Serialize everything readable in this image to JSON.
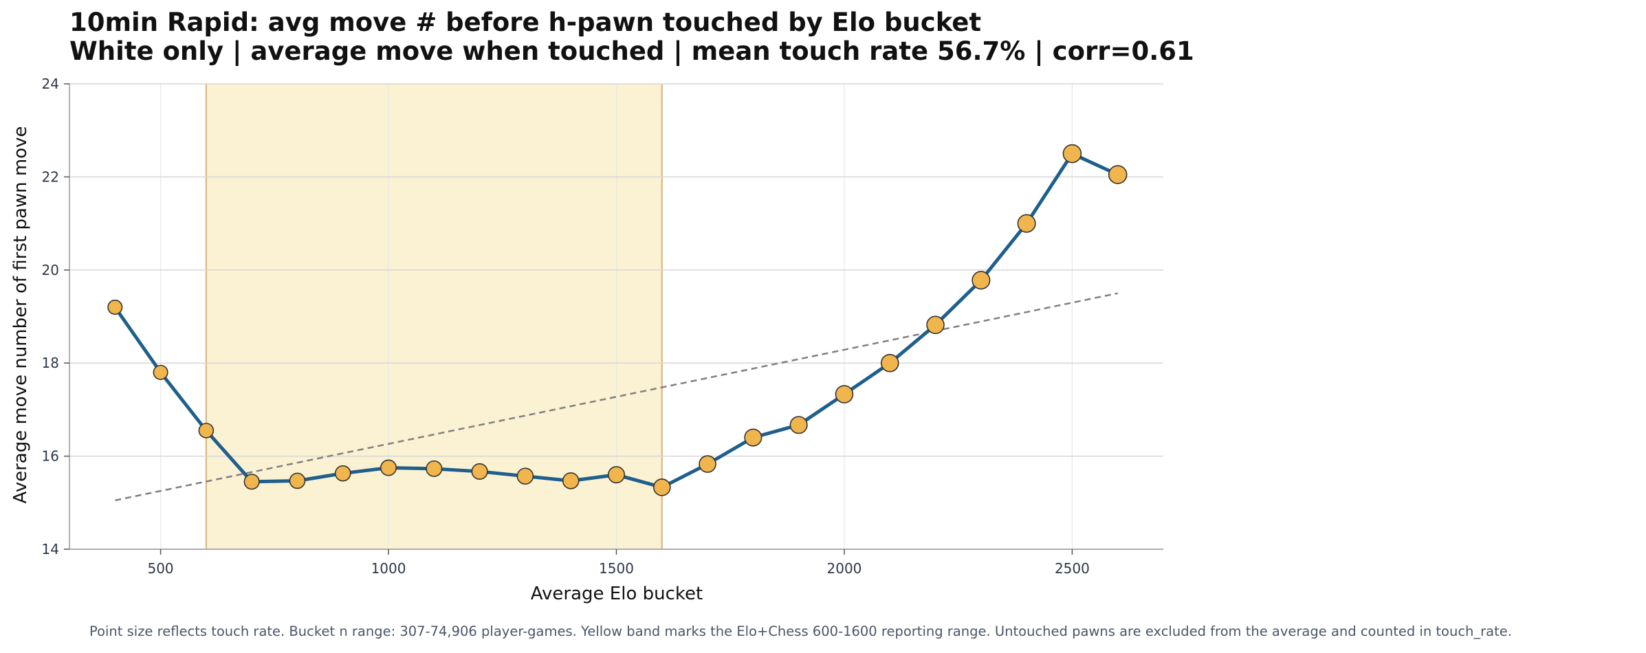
{
  "chart_data": {
    "type": "line",
    "title": "10min Rapid: avg move # before h-pawn touched by Elo bucket",
    "subtitle": "White only | average move when touched | mean touch rate 56.7% | corr=0.61",
    "xlabel": "Average Elo bucket",
    "ylabel": "Average move number of first pawn move",
    "xlim": [
      300,
      2700
    ],
    "ylim": [
      14,
      24
    ],
    "x_ticks": [
      500,
      1000,
      1500,
      2000,
      2500
    ],
    "y_ticks": [
      14,
      16,
      18,
      20,
      22,
      24
    ],
    "grid": true,
    "highlight_band": {
      "x_start": 600,
      "x_end": 1600,
      "color": "#fbf1d3"
    },
    "series": [
      {
        "x": [
          400,
          500,
          600,
          700,
          800,
          900,
          1000,
          1100,
          1200,
          1300,
          1400,
          1500,
          1600,
          1700,
          1800,
          1900,
          2000,
          2100,
          2200,
          2300,
          2400,
          2500,
          2600
        ],
        "values": [
          19.2,
          17.8,
          16.55,
          15.45,
          15.47,
          15.63,
          15.75,
          15.73,
          15.67,
          15.57,
          15.47,
          15.6,
          15.33,
          15.83,
          16.4,
          16.67,
          17.33,
          18.0,
          18.82,
          19.78,
          21.0,
          22.5,
          22.05
        ],
        "marker_size": [
          0.45,
          0.45,
          0.5,
          0.55,
          0.6,
          0.6,
          0.65,
          0.65,
          0.65,
          0.7,
          0.7,
          0.75,
          0.8,
          0.8,
          0.85,
          0.85,
          0.9,
          0.9,
          0.9,
          0.95,
          0.95,
          1.0,
          1.0
        ],
        "color": "#1f5f8b",
        "marker_color": "#f0b54d"
      }
    ],
    "trend_line": {
      "x": [
        400,
        2600
      ],
      "values": [
        15.05,
        19.5
      ],
      "color": "#808080",
      "style": "dashed"
    }
  },
  "footnote": "Point size reflects touch rate. Bucket n range: 307-74,906 player-games. Yellow band marks the Elo+Chess 600-1600 reporting range. Untouched pawns are excluded from the average and counted in touch_rate."
}
